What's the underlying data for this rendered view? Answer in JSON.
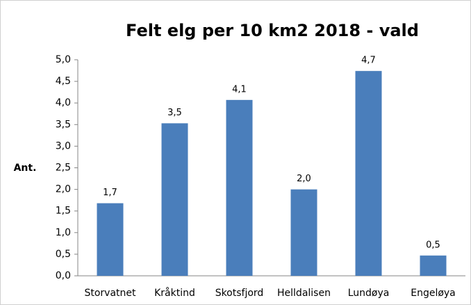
{
  "chart_data": {
    "type": "bar",
    "title": "Felt elg per 10 km2  2018 - vald",
    "y_label": "Ant.",
    "categories": [
      "Storvatnet",
      "Kråktind",
      "Skotsfjord",
      "Helldalisen",
      "Lundøya",
      "Engeløya"
    ],
    "values": [
      1.68,
      3.53,
      4.07,
      2.0,
      4.74,
      0.47
    ],
    "value_labels": [
      "1,7",
      "3,5",
      "4,1",
      "2,0",
      "4,7",
      "0,5"
    ],
    "color": "#4a7ebb",
    "ylim": [
      0,
      5
    ],
    "yticks": [
      {
        "value": 0,
        "label": "0,0"
      },
      {
        "value": 0.5,
        "label": "0,5"
      },
      {
        "value": 1,
        "label": "1,0"
      },
      {
        "value": 1.5,
        "label": "1,5"
      },
      {
        "value": 2,
        "label": "2,0"
      },
      {
        "value": 2.5,
        "label": "2,5"
      },
      {
        "value": 3,
        "label": "3,0"
      },
      {
        "value": 3.5,
        "label": "3,5"
      },
      {
        "value": 4,
        "label": "4,0"
      },
      {
        "value": 4.5,
        "label": "4,5"
      },
      {
        "value": 5,
        "label": "5,0"
      }
    ],
    "grid": false
  }
}
